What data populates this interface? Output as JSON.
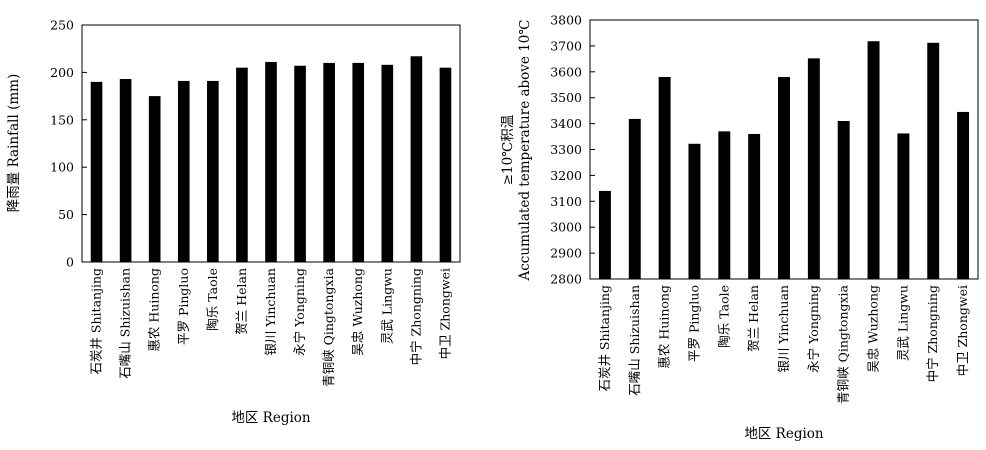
{
  "chart_data": [
    {
      "type": "bar",
      "title": "",
      "xlabel": "地区 Region",
      "ylabel": "降雨量 Rainfall (mm)",
      "categories": [
        "石炭井 Shitanjing",
        "石嘴山 Shizuishan",
        "惠农 Huinong",
        "平罗 Pingluo",
        "陶乐 Taole",
        "贺兰 Helan",
        "银川 Yinchuan",
        "永宁 Yongning",
        "青铜峡 Qingtongxia",
        "吴忠 Wuzhong",
        "灵武 Lingwu",
        "中宁 Zhongning",
        "中卫 Zhongwei"
      ],
      "values": [
        190,
        193,
        175,
        191,
        191,
        205,
        211,
        207,
        210,
        210,
        208,
        217,
        205
      ],
      "ylim": [
        0,
        250
      ],
      "yticks": [
        0,
        50,
        100,
        150,
        200,
        250
      ],
      "grid": false,
      "bar_color": "#000000"
    },
    {
      "type": "bar",
      "title": "",
      "xlabel": "地区 Region",
      "ylabel": [
        "≥10℃积温",
        "Accumulated temperature above 10℃"
      ],
      "categories": [
        "石炭井 Shitanjing",
        "石嘴山 Shizuishan",
        "惠农 Huinong",
        "平罗 Pingluo",
        "陶乐 Taole",
        "贺兰 Helan",
        "银川 Yinchuan",
        "永宁 Yongning",
        "青铜峡 Qingtongxia",
        "吴忠 Wuzhong",
        "灵武 Lingwu",
        "中宁 Zhongning",
        "中卫 Zhongwei"
      ],
      "values": [
        3140,
        3418,
        3580,
        3322,
        3370,
        3360,
        3580,
        3652,
        3410,
        3718,
        3362,
        3712,
        3445
      ],
      "ylim": [
        2800,
        3800
      ],
      "yticks": [
        2800,
        2900,
        3000,
        3100,
        3200,
        3300,
        3400,
        3500,
        3600,
        3700,
        3800
      ],
      "grid": false,
      "bar_color": "#000000"
    }
  ]
}
